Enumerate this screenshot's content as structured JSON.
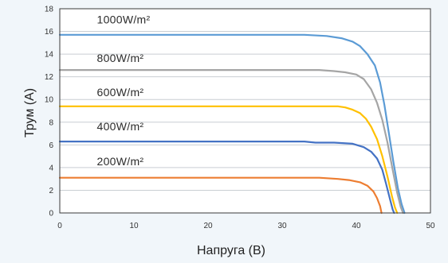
{
  "chart_data": {
    "type": "line",
    "title": "",
    "xlabel": "Напруга (В)",
    "ylabel": "Трум (А)",
    "xlim": [
      0,
      50
    ],
    "ylim": [
      0,
      18
    ],
    "x_ticks": [
      0,
      10,
      20,
      30,
      40,
      50
    ],
    "y_ticks": [
      0,
      2,
      4,
      6,
      8,
      10,
      12,
      14,
      16,
      18
    ],
    "grid": "horizontal",
    "colors": {
      "plot_bg": "#ffffff",
      "page_bg": "#f1f6fa",
      "frame": "#3a3a3a"
    },
    "series": [
      {
        "name": "1000W/m²",
        "color": "#5b9bd5",
        "points": [
          [
            0,
            15.7
          ],
          [
            10,
            15.7
          ],
          [
            20,
            15.7
          ],
          [
            30,
            15.7
          ],
          [
            33,
            15.7
          ],
          [
            36,
            15.6
          ],
          [
            38,
            15.4
          ],
          [
            39.5,
            15.1
          ],
          [
            40.5,
            14.7
          ],
          [
            41.5,
            14.0
          ],
          [
            42.5,
            13.0
          ],
          [
            43.2,
            11.5
          ],
          [
            43.8,
            9.5
          ],
          [
            44.4,
            7.0
          ],
          [
            45,
            4.5
          ],
          [
            45.6,
            2.2
          ],
          [
            46.1,
            0.8
          ],
          [
            46.5,
            0
          ]
        ]
      },
      {
        "name": "800W/m²",
        "color": "#a5a5a5",
        "points": [
          [
            0,
            12.6
          ],
          [
            10,
            12.6
          ],
          [
            20,
            12.6
          ],
          [
            30,
            12.6
          ],
          [
            35,
            12.6
          ],
          [
            37,
            12.5
          ],
          [
            38.5,
            12.4
          ],
          [
            40,
            12.2
          ],
          [
            41,
            11.8
          ],
          [
            42,
            10.9
          ],
          [
            42.8,
            9.7
          ],
          [
            43.5,
            8.2
          ],
          [
            44.2,
            6.2
          ],
          [
            44.9,
            3.8
          ],
          [
            45.5,
            1.8
          ],
          [
            46,
            0.5
          ],
          [
            46.3,
            0
          ]
        ]
      },
      {
        "name": "600W/m²",
        "color": "#ffc000",
        "points": [
          [
            0,
            9.4
          ],
          [
            10,
            9.4
          ],
          [
            20,
            9.4
          ],
          [
            30,
            9.4
          ],
          [
            35,
            9.4
          ],
          [
            37.5,
            9.4
          ],
          [
            38.5,
            9.3
          ],
          [
            39.5,
            9.1
          ],
          [
            40.5,
            8.8
          ],
          [
            41.3,
            8.3
          ],
          [
            42,
            7.6
          ],
          [
            42.8,
            6.5
          ],
          [
            43.5,
            5.0
          ],
          [
            44.2,
            3.2
          ],
          [
            44.8,
            1.5
          ],
          [
            45.2,
            0.5
          ],
          [
            45.5,
            0
          ]
        ]
      },
      {
        "name": "400W/m²",
        "color": "#4472c4",
        "points": [
          [
            0,
            6.3
          ],
          [
            10,
            6.3
          ],
          [
            20,
            6.3
          ],
          [
            30,
            6.3
          ],
          [
            33,
            6.3
          ],
          [
            34.5,
            6.2
          ],
          [
            37,
            6.2
          ],
          [
            39.5,
            6.1
          ],
          [
            41,
            5.8
          ],
          [
            42,
            5.4
          ],
          [
            42.8,
            4.8
          ],
          [
            43.5,
            3.8
          ],
          [
            44,
            2.6
          ],
          [
            44.5,
            1.3
          ],
          [
            44.9,
            0.3
          ],
          [
            45.1,
            0
          ]
        ]
      },
      {
        "name": "200W/m²",
        "color": "#ed7d31",
        "points": [
          [
            0,
            3.1
          ],
          [
            10,
            3.1
          ],
          [
            20,
            3.1
          ],
          [
            30,
            3.1
          ],
          [
            35,
            3.1
          ],
          [
            37.5,
            3.0
          ],
          [
            39,
            2.9
          ],
          [
            40.5,
            2.7
          ],
          [
            41.5,
            2.4
          ],
          [
            42.3,
            1.9
          ],
          [
            42.8,
            1.3
          ],
          [
            43.2,
            0.6
          ],
          [
            43.4,
            0
          ]
        ]
      }
    ],
    "label_positions": [
      {
        "series": 0,
        "x": 5,
        "y": 16.7
      },
      {
        "series": 1,
        "x": 5,
        "y": 13.3
      },
      {
        "series": 2,
        "x": 5,
        "y": 10.3
      },
      {
        "series": 3,
        "x": 5,
        "y": 7.3
      },
      {
        "series": 4,
        "x": 5,
        "y": 4.2
      }
    ]
  }
}
